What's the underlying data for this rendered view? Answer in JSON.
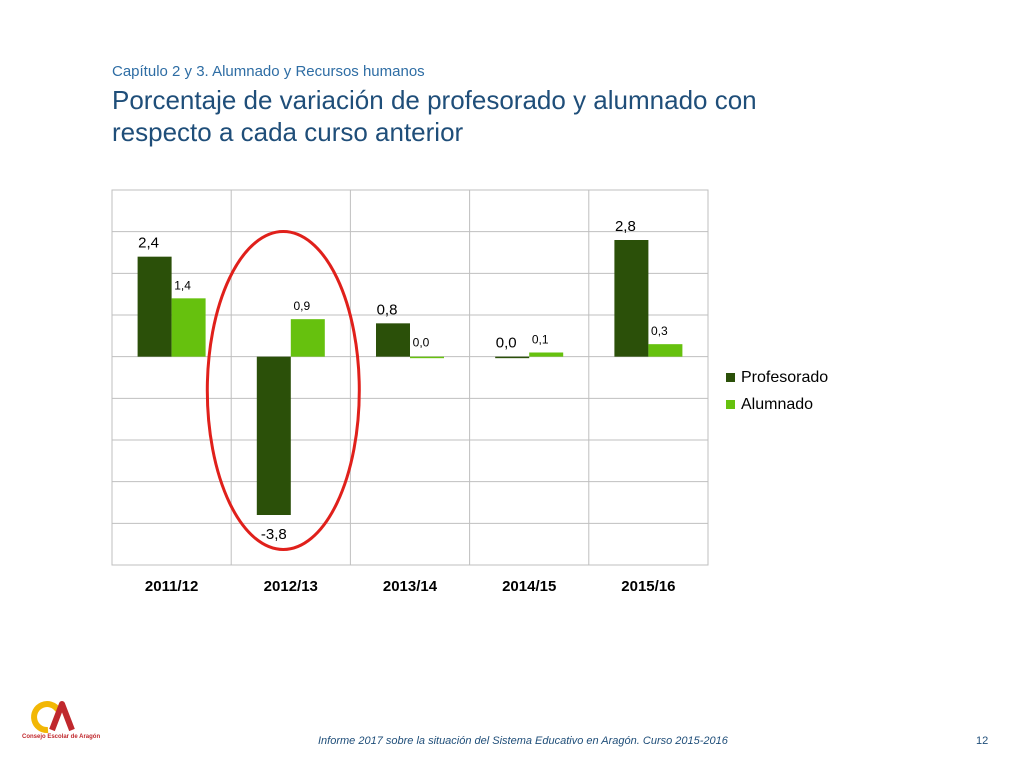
{
  "header": {
    "subtitle": "Capítulo 2 y 3. Alumnado  y Recursos humanos",
    "title": "Porcentaje de variación de profesorado y alumnado con respecto a cada curso anterior"
  },
  "chart_data": {
    "type": "bar",
    "categories": [
      "2011/12",
      "2012/13",
      "2013/14",
      "2014/15",
      "2015/16"
    ],
    "series": [
      {
        "name": "Profesorado",
        "color": "#2b5009",
        "values": [
          2.4,
          -3.8,
          0.8,
          0.0,
          2.8
        ],
        "labels": [
          "2,4",
          "-3,8",
          "0,8",
          "0,0",
          "2,8"
        ]
      },
      {
        "name": "Alumnado",
        "color": "#66c10e",
        "values": [
          1.4,
          0.9,
          0.0,
          0.1,
          0.3
        ],
        "labels": [
          "1,4",
          "0,9",
          "0,0",
          "0,1",
          "0,3"
        ]
      }
    ],
    "ylim": [
      -5,
      4
    ],
    "grid": true,
    "legend_position": "right",
    "highlight": {
      "category": "2012/13",
      "shape": "ellipse",
      "color": "#e0201b"
    },
    "title": "",
    "xlabel": "",
    "ylabel": ""
  },
  "footer": {
    "text": "Informe 2017 sobre la situación del Sistema Educativo en Aragón. Curso 2015-2016",
    "page_number": "12",
    "logo_text": "Consejo Escolar de Aragón"
  }
}
